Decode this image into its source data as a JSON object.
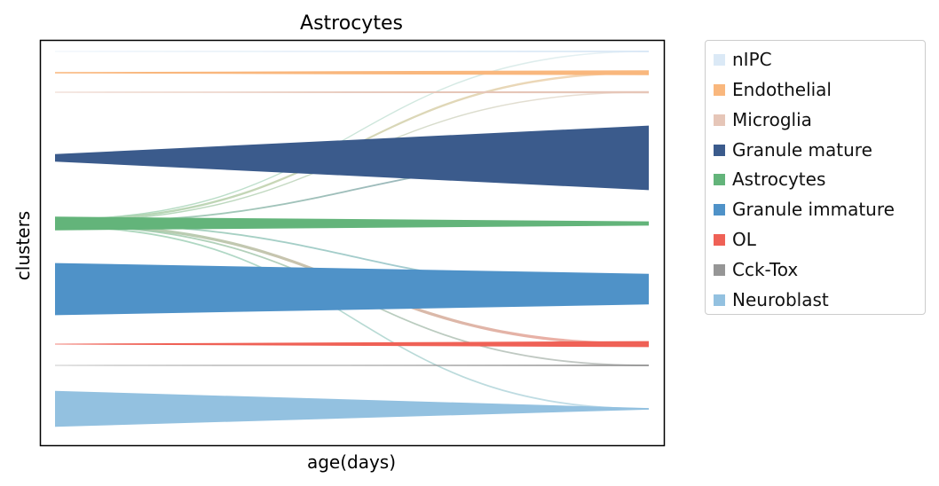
{
  "chart_data": {
    "type": "area",
    "title": "Astrocytes",
    "xlabel": "age(days)",
    "ylabel": "clusters",
    "grid": false,
    "legend_position": "outside right",
    "legend": [
      {
        "name": "nIPC",
        "color": "#dbe9f6"
      },
      {
        "name": "Endothelial",
        "color": "#f9b77d"
      },
      {
        "name": "Microglia",
        "color": "#e6c6b8"
      },
      {
        "name": "Granule mature",
        "color": "#3b5b8c"
      },
      {
        "name": "Astrocytes",
        "color": "#63b47a"
      },
      {
        "name": "Granule immature",
        "color": "#4f92c8"
      },
      {
        "name": "OL",
        "color": "#ef6156"
      },
      {
        "name": "Cck-Tox",
        "color": "#969696"
      },
      {
        "name": "Neuroblast",
        "color": "#93c1e0"
      }
    ],
    "clusters": [
      {
        "name": "nIPC",
        "size_start": 0.002,
        "size_end": 0.007
      },
      {
        "name": "Endothelial",
        "size_start": 0.005,
        "size_end": 0.02
      },
      {
        "name": "Microglia",
        "size_start": 0.003,
        "size_end": 0.009
      },
      {
        "name": "Granule mature",
        "size_start": 0.03,
        "size_end": 0.26
      },
      {
        "name": "Astrocytes",
        "size_start": 0.055,
        "size_end": 0.017
      },
      {
        "name": "Granule immature",
        "size_start": 0.21,
        "size_end": 0.123
      },
      {
        "name": "OL",
        "size_start": 0.003,
        "size_end": 0.024
      },
      {
        "name": "Cck-Tox",
        "size_start": 0.002,
        "size_end": 0.006
      },
      {
        "name": "Neuroblast",
        "size_start": 0.145,
        "size_end": 0.006
      }
    ],
    "transitions": [
      {
        "from": "Astrocytes",
        "to": "nIPC",
        "weight": 0.01
      },
      {
        "from": "Astrocytes",
        "to": "Endothelial",
        "weight": 0.016
      },
      {
        "from": "Astrocytes",
        "to": "Microglia",
        "weight": 0.01
      },
      {
        "from": "Astrocytes",
        "to": "Granule mature",
        "weight": 0.012
      },
      {
        "from": "Astrocytes",
        "to": "Granule immature",
        "weight": 0.012
      },
      {
        "from": "Astrocytes",
        "to": "OL",
        "weight": 0.022
      },
      {
        "from": "Astrocytes",
        "to": "Cck-Tox",
        "weight": 0.012
      },
      {
        "from": "Astrocytes",
        "to": "Neuroblast",
        "weight": 0.012
      }
    ]
  }
}
